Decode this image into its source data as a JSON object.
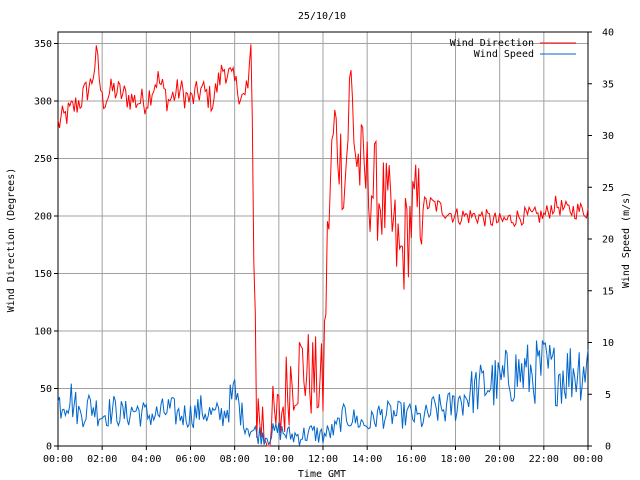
{
  "chart_data": {
    "type": "line",
    "title": "25/10/10",
    "xlabel": "Time GMT",
    "ylabel_left": "Wind Direction (Degrees)",
    "ylabel_right": "Wind Speed (m/s)",
    "x_range_hours": [
      0,
      24
    ],
    "ylim_left": [
      0,
      360
    ],
    "ylim_right": [
      0,
      40
    ],
    "grid": true,
    "legend_placement": "top-right",
    "x_ticks": [
      "00:00",
      "02:00",
      "04:00",
      "06:00",
      "08:00",
      "10:00",
      "12:00",
      "14:00",
      "16:00",
      "18:00",
      "20:00",
      "22:00",
      "00:00"
    ],
    "y_ticks_left": [
      "0",
      "50",
      "100",
      "150",
      "200",
      "250",
      "300",
      "350"
    ],
    "y_ticks_right": [
      "0",
      "5",
      "10",
      "15",
      "20",
      "25",
      "30",
      "35",
      "40"
    ],
    "series": [
      {
        "name": "Wind Direction",
        "axis": "left",
        "color": "#ff0000",
        "x_hours": [
          0,
          0.5,
          1,
          1.5,
          1.75,
          2,
          2.5,
          3,
          3.5,
          4,
          4.5,
          5,
          5.5,
          6,
          6.5,
          7,
          7.5,
          8,
          8.5,
          8.75,
          9,
          9.25,
          9.5,
          10,
          10.5,
          11,
          11.5,
          12,
          12.25,
          12.5,
          13,
          13.25,
          13.5,
          14,
          14.5,
          15,
          15.5,
          16,
          16.5,
          17,
          17.5,
          18,
          19,
          20,
          21,
          22,
          22.5,
          23,
          24
        ],
        "values": [
          280,
          290,
          300,
          315,
          340,
          300,
          310,
          305,
          300,
          300,
          320,
          300,
          310,
          300,
          310,
          300,
          330,
          315,
          300,
          330,
          30,
          20,
          10,
          20,
          60,
          70,
          60,
          50,
          200,
          280,
          230,
          320,
          250,
          230,
          220,
          200,
          160,
          200,
          210,
          210,
          205,
          200,
          200,
          195,
          200,
          200,
          210,
          205,
          205
        ]
      },
      {
        "name": "Wind Speed",
        "axis": "right",
        "color": "#0066cc",
        "x_hours": [
          0,
          0.5,
          1,
          1.5,
          2,
          2.5,
          3,
          3.5,
          4,
          4.5,
          5,
          5.5,
          6,
          6.5,
          7,
          7.5,
          8,
          8.5,
          9,
          9.5,
          10,
          10.5,
          11,
          11.5,
          12,
          12.5,
          13,
          13.5,
          14,
          14.5,
          15,
          15.5,
          16,
          16.5,
          17,
          17.5,
          18,
          18.5,
          19,
          19.5,
          20,
          20.5,
          21,
          21.5,
          22,
          22.5,
          23,
          23.5,
          24
        ],
        "values": [
          4,
          5,
          3,
          4,
          3,
          3.5,
          3,
          3.5,
          3,
          3,
          3.5,
          3,
          3,
          3.5,
          3,
          3,
          5,
          2,
          1.2,
          1,
          1.5,
          1,
          1,
          1.3,
          1,
          1.5,
          3,
          2.5,
          2,
          3,
          3,
          3,
          3,
          2.5,
          3.5,
          3.5,
          4,
          5,
          5.5,
          6,
          6,
          7,
          7,
          7,
          7.5,
          7,
          7,
          7.5,
          8
        ]
      }
    ]
  }
}
